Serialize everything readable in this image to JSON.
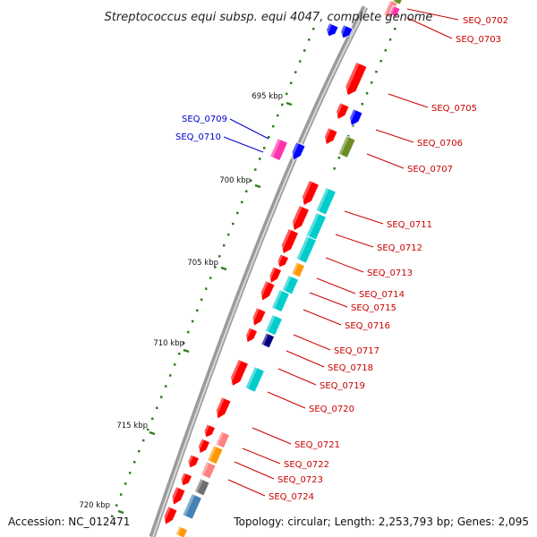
{
  "title": "Streptococcus equi subsp. equi 4047, complete genome",
  "accession": "Accession: NC_012471",
  "topology": "Topology: circular; Length: 2,253,793 bp; Genes: 2,095",
  "colors": {
    "backbone": "#808080",
    "ticks": "#2e7d1e",
    "label_red": "#cc0000",
    "label_blue": "#0000cc",
    "gene_red": "#ff0000",
    "gene_blue": "#0000ff",
    "gene_cyan": "#00cccc",
    "gene_magenta": "#ff33aa",
    "gene_olive": "#6b8e23",
    "gene_orange": "#ff9900",
    "gene_pink": "#ff8080",
    "gene_navy": "#000080",
    "gene_gray": "#707070",
    "gene_steel": "#4682b4"
  },
  "kbp_markers": [
    "695 kbp",
    "700 kbp",
    "705 kbp",
    "710 kbp",
    "715 kbp",
    "720 kbp"
  ],
  "gene_labels": [
    {
      "text": "SEQ_0702",
      "strand": "right",
      "color": "red"
    },
    {
      "text": "SEQ_0703",
      "strand": "right",
      "color": "red"
    },
    {
      "text": "SEQ_0705",
      "strand": "right",
      "color": "red"
    },
    {
      "text": "SEQ_0706",
      "strand": "right",
      "color": "red"
    },
    {
      "text": "SEQ_0707",
      "strand": "right",
      "color": "red"
    },
    {
      "text": "SEQ_0709",
      "strand": "left",
      "color": "blue"
    },
    {
      "text": "SEQ_0710",
      "strand": "left",
      "color": "blue"
    },
    {
      "text": "SEQ_0711",
      "strand": "right",
      "color": "red"
    },
    {
      "text": "SEQ_0712",
      "strand": "right",
      "color": "red"
    },
    {
      "text": "SEQ_0713",
      "strand": "right",
      "color": "red"
    },
    {
      "text": "SEQ_0714",
      "strand": "right",
      "color": "red"
    },
    {
      "text": "SEQ_0715",
      "strand": "right",
      "color": "red"
    },
    {
      "text": "SEQ_0716",
      "strand": "right",
      "color": "red"
    },
    {
      "text": "SEQ_0717",
      "strand": "right",
      "color": "red"
    },
    {
      "text": "SEQ_0718",
      "strand": "right",
      "color": "red"
    },
    {
      "text": "SEQ_0719",
      "strand": "right",
      "color": "red"
    },
    {
      "text": "SEQ_0720",
      "strand": "right",
      "color": "red"
    },
    {
      "text": "SEQ_0721",
      "strand": "right",
      "color": "red"
    },
    {
      "text": "SEQ_0722",
      "strand": "right",
      "color": "red"
    },
    {
      "text": "SEQ_0723",
      "strand": "right",
      "color": "red"
    },
    {
      "text": "SEQ_0724",
      "strand": "right",
      "color": "red"
    }
  ]
}
